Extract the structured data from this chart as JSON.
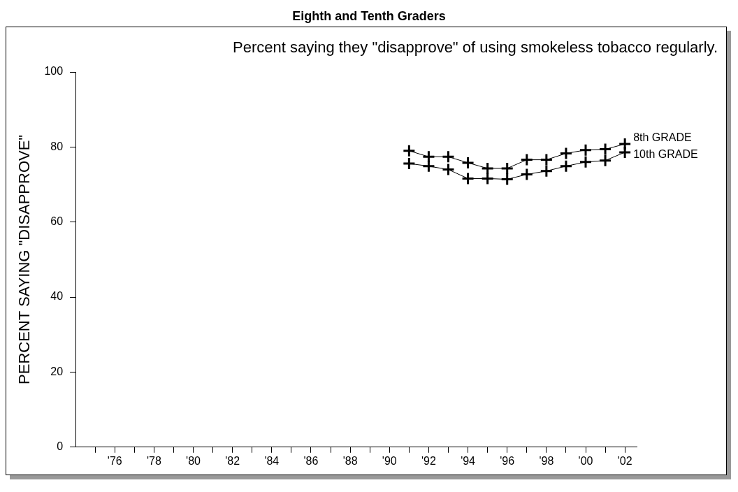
{
  "chart_data": {
    "type": "line",
    "title": "Eighth and Tenth Graders",
    "subtitle": "Percent saying they \"disapprove\" of using smokeless tobacco regularly.",
    "ylabel": "PERCENT SAYING \"DISAPPROVE\"",
    "x": [
      1991,
      1992,
      1993,
      1994,
      1995,
      1996,
      1997,
      1998,
      1999,
      2000,
      2001,
      2002
    ],
    "series": [
      {
        "name": "8th GRADE",
        "color": "#000000",
        "values": [
          79.0,
          77.4,
          77.4,
          75.8,
          74.3,
          74.3,
          76.6,
          76.6,
          78.3,
          79.2,
          79.4,
          80.8
        ]
      },
      {
        "name": "10th GRADE",
        "color": "#000000",
        "values": [
          75.6,
          74.9,
          74.0,
          71.6,
          71.6,
          71.4,
          72.7,
          73.6,
          74.9,
          76.0,
          76.4,
          78.6
        ]
      }
    ],
    "xlim": [
      1974,
      2002.6
    ],
    "xticks": [
      {
        "value": 1975,
        "label": null
      },
      {
        "value": 1976,
        "label": "'76"
      },
      {
        "value": 1977,
        "label": null
      },
      {
        "value": 1978,
        "label": "'78"
      },
      {
        "value": 1979,
        "label": null
      },
      {
        "value": 1980,
        "label": "'80"
      },
      {
        "value": 1981,
        "label": null
      },
      {
        "value": 1982,
        "label": "'82"
      },
      {
        "value": 1983,
        "label": null
      },
      {
        "value": 1984,
        "label": "'84"
      },
      {
        "value": 1985,
        "label": null
      },
      {
        "value": 1986,
        "label": "'86"
      },
      {
        "value": 1987,
        "label": null
      },
      {
        "value": 1988,
        "label": "'88"
      },
      {
        "value": 1989,
        "label": null
      },
      {
        "value": 1990,
        "label": "'90"
      },
      {
        "value": 1991,
        "label": null
      },
      {
        "value": 1992,
        "label": "'92"
      },
      {
        "value": 1993,
        "label": null
      },
      {
        "value": 1994,
        "label": "'94"
      },
      {
        "value": 1995,
        "label": null
      },
      {
        "value": 1996,
        "label": "'96"
      },
      {
        "value": 1997,
        "label": null
      },
      {
        "value": 1998,
        "label": "'98"
      },
      {
        "value": 1999,
        "label": null
      },
      {
        "value": 2000,
        "label": "'00"
      },
      {
        "value": 2001,
        "label": null
      },
      {
        "value": 2002,
        "label": "'02"
      }
    ],
    "ylim": [
      0,
      100
    ],
    "yticks": [
      0,
      20,
      40,
      60,
      80,
      100
    ],
    "grid": false,
    "legend": false,
    "marker": "cross",
    "line_style": "solid"
  }
}
